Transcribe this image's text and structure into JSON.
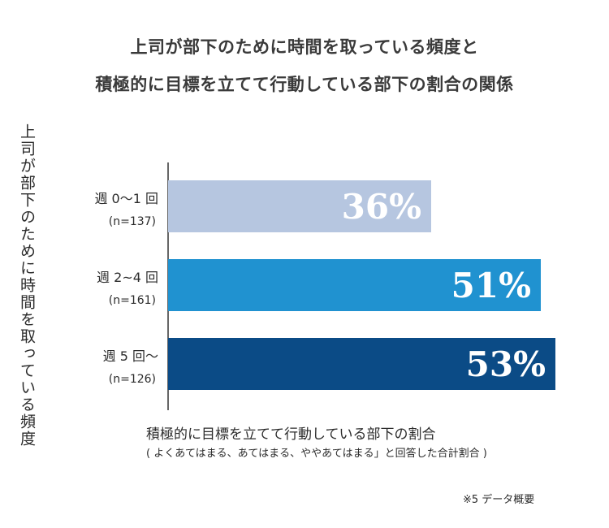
{
  "header": {
    "title_line_1": "上司が部下のために時間を取っている頻度と",
    "title_line_2": "積極的に目標を立てて行動している部下の割合の関係"
  },
  "chart_data": {
    "type": "bar",
    "orientation": "horizontal",
    "ylabel": "上司が部下のために時間を取っている頻度",
    "xlabel": "積極的に目標を立てて行動している部下の割合",
    "xlabel_sub": "( よくあてはまる、あてはまる、ややあてはまる」と回答した合計割合 )",
    "xlim": [
      0,
      70
    ],
    "grid": false,
    "categories": [
      {
        "label": "週 0〜1 回",
        "n": "(n=137)"
      },
      {
        "label": "週 2~4 回",
        "n": "(n=161)"
      },
      {
        "label": "週 5 回〜",
        "n": "(n=126)"
      }
    ],
    "values": [
      36,
      51,
      53
    ],
    "value_labels": [
      "36%",
      "51%",
      "53%"
    ],
    "colors": [
      "#b6c6e0",
      "#2092d0",
      "#0b4b86"
    ]
  },
  "footnote": "※5 データ概要"
}
